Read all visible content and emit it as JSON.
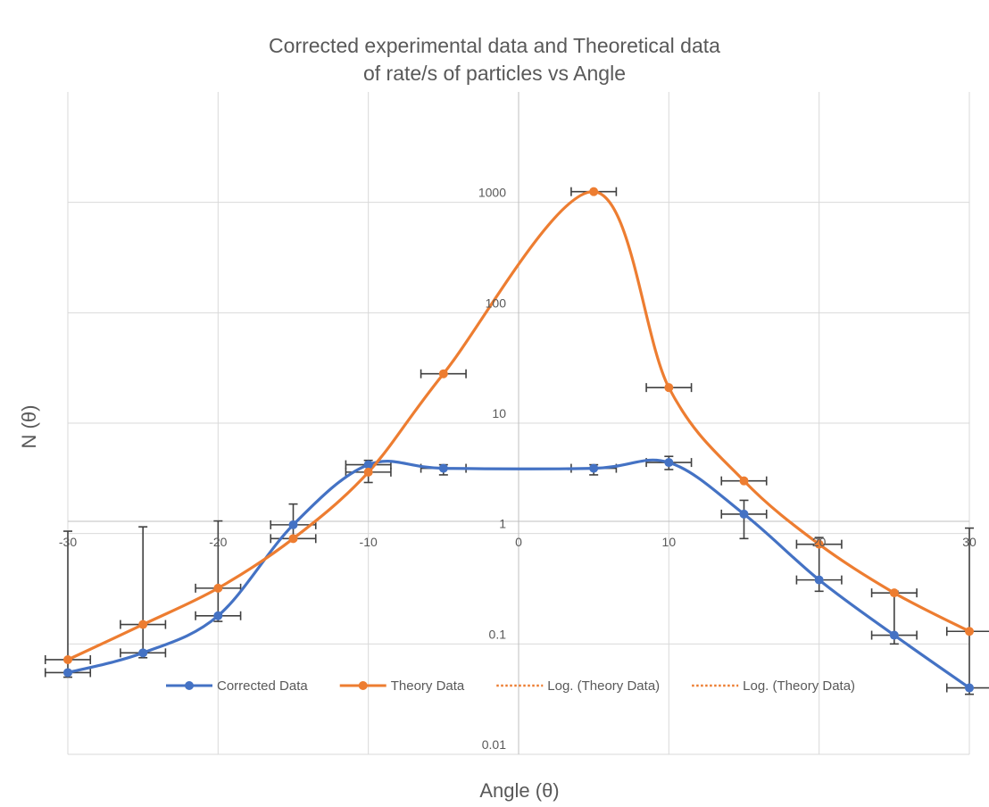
{
  "chart_data": {
    "type": "scatter",
    "title_lines": [
      "Corrected experimental data and Theoretical data",
      "of rate/s of particles vs Angle"
    ],
    "xlabel": "Angle (θ)",
    "ylabel": "N (θ)",
    "xlim": [
      -30,
      30
    ],
    "ylim": [
      0.01,
      10000
    ],
    "yscale": "log",
    "x_tick_labels": [
      "-30",
      "-20",
      "-10",
      "0",
      "10",
      "20",
      "30"
    ],
    "y_tick_labels": [
      "0.01",
      "0.1",
      "1",
      "10",
      "100",
      "1000"
    ],
    "grid": true,
    "legend_position": "bottom",
    "colors": {
      "corrected": "#4472C4",
      "theory": "#ED7D31",
      "grid": "#D9D9D9",
      "errorbar": "#404040"
    },
    "series": [
      {
        "name": "Corrected Data",
        "color": "#4472C4",
        "x": [
          -30,
          -25,
          -20,
          -15,
          -10,
          -5,
          5,
          10,
          15,
          20,
          25,
          30
        ],
        "y": [
          0.055,
          0.083,
          0.18,
          1.2,
          4.2,
          3.9,
          3.9,
          4.4,
          1.5,
          0.38,
          0.12,
          0.04
        ],
        "x_err": [
          1.5,
          1.5,
          1.5,
          1.5,
          1.5,
          1.5,
          1.5,
          1.5,
          1.5,
          1.5,
          1.5,
          1.5
        ],
        "y_err_high": [
          1.05,
          1.15,
          1.3,
          1.85,
          4.6,
          4.2,
          4.2,
          5.0,
          2.0,
          0.92,
          0.3,
          1.12
        ],
        "y_err_low": [
          0.05,
          0.075,
          0.16,
          0.9,
          2.9,
          3.4,
          3.4,
          3.8,
          0.9,
          0.3,
          0.1,
          0.035
        ]
      },
      {
        "name": "Theory Data",
        "color": "#ED7D31",
        "x": [
          -30,
          -25,
          -20,
          -15,
          -10,
          -5,
          5,
          10,
          15,
          20,
          25,
          30
        ],
        "y": [
          0.072,
          0.15,
          0.32,
          0.9,
          3.6,
          28,
          1250,
          21,
          3.0,
          0.8,
          0.29,
          0.13
        ],
        "x_err": [
          1.5,
          1.5,
          1.5,
          1.5,
          1.5,
          1.5,
          1.5,
          1.5,
          1.5,
          1.5,
          1.5,
          1.5
        ]
      }
    ],
    "legend": [
      {
        "label": "Corrected Data",
        "style": "line-marker",
        "color": "#4472C4"
      },
      {
        "label": "Theory Data",
        "style": "line-marker",
        "color": "#ED7D31"
      },
      {
        "label": "Log. (Theory Data)",
        "style": "dotted",
        "color": "#ED7D31"
      },
      {
        "label": "Log. (Theory Data)",
        "style": "dotted",
        "color": "#ED7D31"
      }
    ]
  }
}
